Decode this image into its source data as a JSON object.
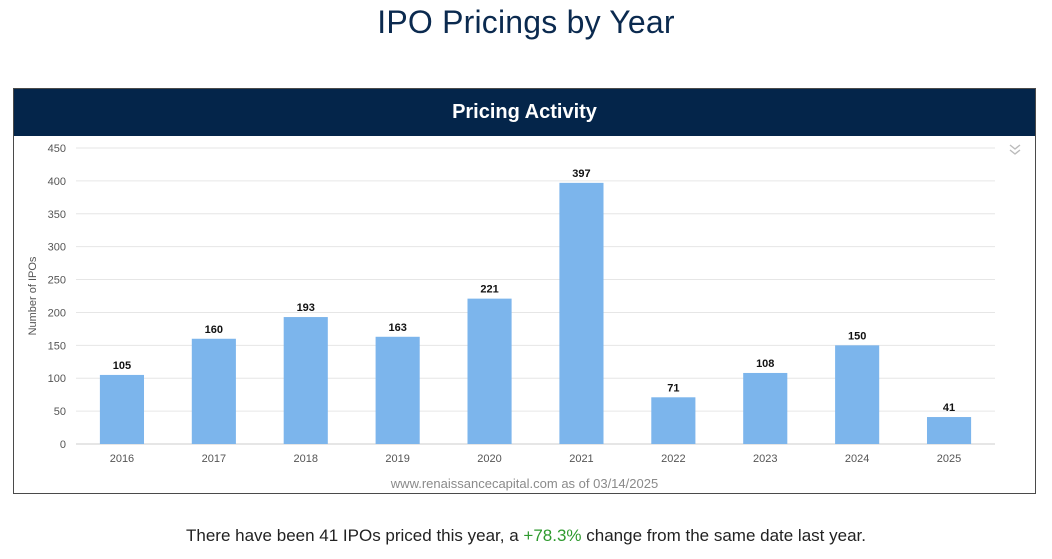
{
  "page_title": "IPO Pricings by Year",
  "chart_header": "Pricing Activity",
  "menu_icon": "double-chevron-down-icon",
  "source_note": "www.renaissancecapital.com as of 03/14/2025",
  "summary": {
    "prefix": "There have been 41 IPOs priced this year, a ",
    "change": "+78.3%",
    "suffix": " change from the same date last year.",
    "change_color": "#2e9a2e"
  },
  "chart_data": {
    "type": "bar",
    "title": "Pricing Activity",
    "xlabel": "",
    "ylabel": "Number of IPOs",
    "categories": [
      "2016",
      "2017",
      "2018",
      "2019",
      "2020",
      "2021",
      "2022",
      "2023",
      "2024",
      "2025"
    ],
    "values": [
      105,
      160,
      193,
      163,
      221,
      397,
      71,
      108,
      150,
      41
    ],
    "ylim": [
      0,
      450
    ],
    "yticks": [
      0,
      50,
      100,
      150,
      200,
      250,
      300,
      350,
      400,
      450
    ],
    "grid": true,
    "bar_color": "#7cb5ec",
    "data_labels": true
  }
}
